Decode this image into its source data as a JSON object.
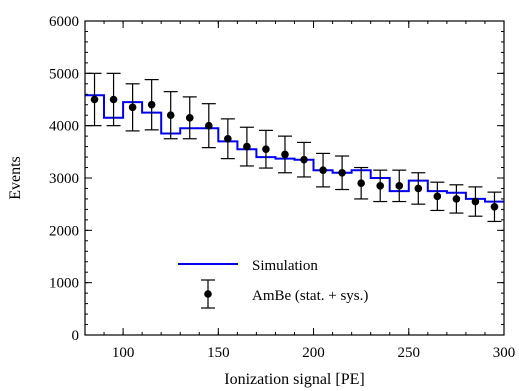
{
  "chart_data": {
    "type": "line",
    "xlabel": "Ionization signal [PE]",
    "ylabel": "Events",
    "xlim": [
      80,
      300
    ],
    "ylim": [
      0,
      6000
    ],
    "xticks": [
      100,
      150,
      200,
      250,
      300
    ],
    "yticks": [
      0,
      1000,
      2000,
      3000,
      4000,
      5000,
      6000
    ],
    "grid": false,
    "legend_position": "bottom-center",
    "simulation": {
      "name": "Simulation",
      "color": "#0000ee",
      "style": "step",
      "bin_edges": [
        80,
        90,
        100,
        110,
        120,
        130,
        140,
        150,
        160,
        170,
        180,
        190,
        200,
        210,
        220,
        230,
        240,
        250,
        260,
        270,
        280,
        290,
        300
      ],
      "values": [
        4580,
        4150,
        4450,
        4250,
        3850,
        3950,
        3950,
        3700,
        3550,
        3400,
        3370,
        3350,
        3150,
        3100,
        3150,
        3000,
        2750,
        2950,
        2750,
        2720,
        2600,
        2550
      ]
    },
    "data": {
      "name": "AmBe (stat. + sys.)",
      "color": "#000000",
      "style": "points-with-errorbars",
      "x": [
        85,
        95,
        105,
        115,
        125,
        135,
        145,
        155,
        165,
        175,
        185,
        195,
        205,
        215,
        225,
        235,
        245,
        255,
        265,
        275,
        285,
        295
      ],
      "y": [
        4500,
        4500,
        4350,
        4400,
        4200,
        4150,
        4000,
        3750,
        3600,
        3550,
        3450,
        3350,
        3150,
        3100,
        2900,
        2850,
        2850,
        2800,
        2650,
        2600,
        2550,
        2450
      ],
      "yerr": [
        500,
        500,
        450,
        480,
        450,
        400,
        420,
        380,
        370,
        360,
        350,
        330,
        320,
        320,
        300,
        300,
        300,
        300,
        270,
        270,
        280,
        280
      ]
    }
  }
}
